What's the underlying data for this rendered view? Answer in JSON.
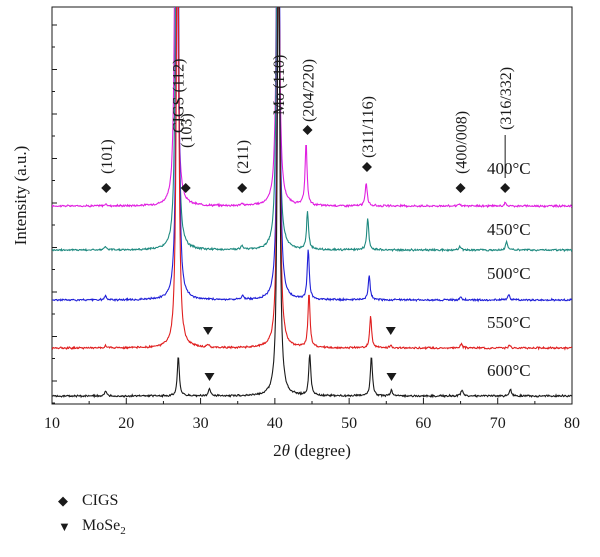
{
  "chart_data": {
    "type": "line",
    "xlabel": "2θ (degree)",
    "ylabel": "Intensity (a.u.)",
    "xlim": [
      10,
      80
    ],
    "xticks": [
      10,
      20,
      30,
      40,
      50,
      60,
      70,
      80
    ],
    "y_ticks_labeled": false,
    "grid": false,
    "series": [
      {
        "name": "400°C",
        "color": "#e020e0",
        "offset": 4,
        "peaks": [
          [
            17.2,
            0.04
          ],
          [
            26.7,
            12.0
          ],
          [
            35.6,
            0.04
          ],
          [
            40.4,
            12.0
          ],
          [
            44.2,
            1.5
          ],
          [
            52.3,
            0.55
          ],
          [
            64.8,
            0.04
          ],
          [
            71.0,
            0.07
          ]
        ]
      },
      {
        "name": "450°C",
        "color": "#1f8a80",
        "offset": 3,
        "peaks": [
          [
            17.2,
            0.08
          ],
          [
            26.8,
            12.0
          ],
          [
            35.6,
            0.1
          ],
          [
            40.4,
            12.0
          ],
          [
            44.4,
            0.9
          ],
          [
            52.5,
            0.75
          ],
          [
            64.9,
            0.08
          ],
          [
            71.2,
            0.2
          ]
        ]
      },
      {
        "name": "500°C",
        "color": "#2020d8",
        "offset": 2,
        "peaks": [
          [
            17.2,
            0.08
          ],
          [
            26.9,
            12.0
          ],
          [
            35.7,
            0.1
          ],
          [
            40.5,
            12.0
          ],
          [
            44.5,
            1.2
          ],
          [
            52.7,
            0.6
          ],
          [
            65.0,
            0.08
          ],
          [
            71.5,
            0.12
          ]
        ]
      },
      {
        "name": "550°C",
        "color": "#e01f1f",
        "offset": 1,
        "peaks": [
          [
            17.2,
            0.05
          ],
          [
            26.9,
            12.0
          ],
          [
            31.0,
            0.07
          ],
          [
            40.5,
            12.0
          ],
          [
            44.6,
            1.3
          ],
          [
            52.9,
            0.75
          ],
          [
            55.6,
            0.06
          ],
          [
            65.1,
            0.1
          ],
          [
            71.6,
            0.07
          ]
        ]
      },
      {
        "name": "600°C",
        "color": "#1a1a1a",
        "offset": 0,
        "peaks": [
          [
            17.2,
            0.1
          ],
          [
            27.0,
            0.95
          ],
          [
            31.2,
            0.18
          ],
          [
            40.5,
            12.0
          ],
          [
            44.7,
            1.0
          ],
          [
            53.0,
            0.95
          ],
          [
            55.7,
            0.13
          ],
          [
            65.2,
            0.15
          ],
          [
            71.7,
            0.17
          ]
        ]
      }
    ],
    "annotations": [
      {
        "text": "(101)",
        "x": 17.3,
        "marker": "diamond",
        "rotate": true
      },
      {
        "text": "CIGS (112)",
        "x": 26.9,
        "marker": null,
        "rotate": true
      },
      {
        "text": "(103)",
        "x": 28.0,
        "marker": "diamond",
        "rotate": true
      },
      {
        "text": "(211)",
        "x": 35.6,
        "marker": "diamond",
        "rotate": true
      },
      {
        "text": "Mo (110)",
        "x": 40.4,
        "marker": null,
        "rotate": true
      },
      {
        "text": "(204/220)",
        "x": 44.4,
        "marker": "diamond",
        "rotate": true
      },
      {
        "text": "(311/116)",
        "x": 52.4,
        "marker": "diamond",
        "rotate": true
      },
      {
        "text": "(400/008)",
        "x": 65.0,
        "marker": "diamond",
        "rotate": true
      },
      {
        "text": "(316/332)",
        "x": 71.0,
        "marker": "diamond",
        "rotate": true
      },
      {
        "text": "▼",
        "x": 31.0,
        "marker": "triangle",
        "series": "550°C"
      },
      {
        "text": "▼",
        "x": 55.6,
        "marker": "triangle",
        "series": "550°C"
      },
      {
        "text": "▼",
        "x": 31.2,
        "marker": "triangle",
        "series": "600°C"
      },
      {
        "text": "▼",
        "x": 55.7,
        "marker": "triangle",
        "series": "600°C"
      }
    ],
    "legend": {
      "placement": "bottom-left",
      "entries": [
        {
          "symbol": "diamond",
          "label": "CIGS"
        },
        {
          "symbol": "triangle",
          "label": "MoSe",
          "subscript": "2"
        }
      ]
    }
  }
}
